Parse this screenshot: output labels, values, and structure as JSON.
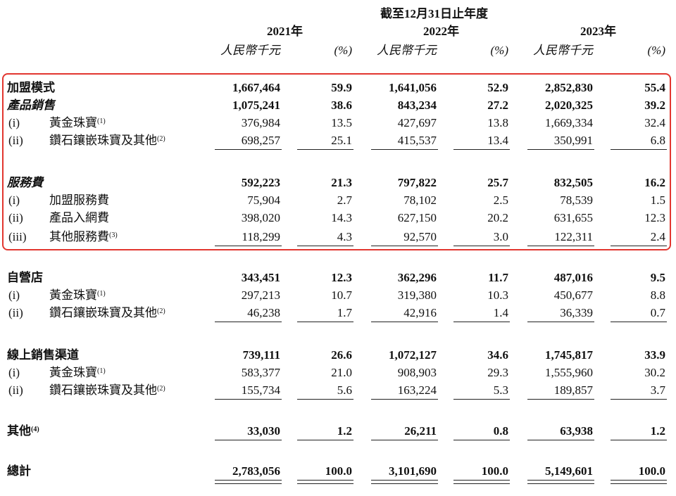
{
  "header": {
    "period": "截至12月31日止年度",
    "years": [
      {
        "year": "2021年",
        "unit": "人民幣千元",
        "pct": "(%)"
      },
      {
        "year": "2022年",
        "unit": "人民幣千元",
        "pct": "(%)"
      },
      {
        "year": "2023年",
        "unit": "人民幣千元",
        "pct": "(%)"
      }
    ]
  },
  "rows": [
    {
      "label": "加盟模式",
      "cells": [
        "1,667,464",
        "59.9",
        "1,641,056",
        "52.9",
        "2,852,830",
        "55.4"
      ]
    },
    {
      "label": "產品銷售",
      "cells": [
        "1,075,241",
        "38.6",
        "843,234",
        "27.2",
        "2,020,325",
        "39.2"
      ]
    },
    {
      "prefix": "(i)",
      "label": "黃金珠寶",
      "note": "(1)",
      "cells": [
        "376,984",
        "13.5",
        "427,697",
        "13.8",
        "1,669,334",
        "32.4"
      ]
    },
    {
      "prefix": "(ii)",
      "label": "鑽石鑲嵌珠寶及其他",
      "note": "(2)",
      "cells": [
        "698,257",
        "25.1",
        "415,537",
        "13.4",
        "350,991",
        "6.8"
      ]
    },
    {
      "label": "服務費",
      "cells": [
        "592,223",
        "21.3",
        "797,822",
        "25.7",
        "832,505",
        "16.2"
      ]
    },
    {
      "prefix": "(i)",
      "label": "加盟服務費",
      "cells": [
        "75,904",
        "2.7",
        "78,102",
        "2.5",
        "78,539",
        "1.5"
      ]
    },
    {
      "prefix": "(ii)",
      "label": "產品入網費",
      "cells": [
        "398,020",
        "14.3",
        "627,150",
        "20.2",
        "631,655",
        "12.3"
      ]
    },
    {
      "prefix": "(iii)",
      "label": "其他服務費",
      "note": "(3)",
      "cells": [
        "118,299",
        "4.3",
        "92,570",
        "3.0",
        "122,311",
        "2.4"
      ]
    },
    {
      "label": "自營店",
      "cells": [
        "343,451",
        "12.3",
        "362,296",
        "11.7",
        "487,016",
        "9.5"
      ]
    },
    {
      "prefix": "(i)",
      "label": "黃金珠寶",
      "note": "(1)",
      "cells": [
        "297,213",
        "10.7",
        "319,380",
        "10.3",
        "450,677",
        "8.8"
      ]
    },
    {
      "prefix": "(ii)",
      "label": "鑽石鑲嵌珠寶及其他",
      "note": "(2)",
      "cells": [
        "46,238",
        "1.7",
        "42,916",
        "1.4",
        "36,339",
        "0.7"
      ]
    },
    {
      "label": "線上銷售渠道",
      "cells": [
        "739,111",
        "26.6",
        "1,072,127",
        "34.6",
        "1,745,817",
        "33.9"
      ]
    },
    {
      "prefix": "(i)",
      "label": "黃金珠寶",
      "note": "(1)",
      "cells": [
        "583,377",
        "21.0",
        "908,903",
        "29.3",
        "1,555,960",
        "30.2"
      ]
    },
    {
      "prefix": "(ii)",
      "label": "鑽石鑲嵌珠寶及其他",
      "note": "(2)",
      "cells": [
        "155,734",
        "5.6",
        "163,224",
        "5.3",
        "189,857",
        "3.7"
      ]
    },
    {
      "label": "其他",
      "note": "(4)",
      "cells": [
        "33,030",
        "1.2",
        "26,211",
        "0.8",
        "63,938",
        "1.2"
      ]
    },
    {
      "label": "總計",
      "cells": [
        "2,783,056",
        "100.0",
        "3,101,690",
        "100.0",
        "5,149,601",
        "100.0"
      ]
    }
  ]
}
